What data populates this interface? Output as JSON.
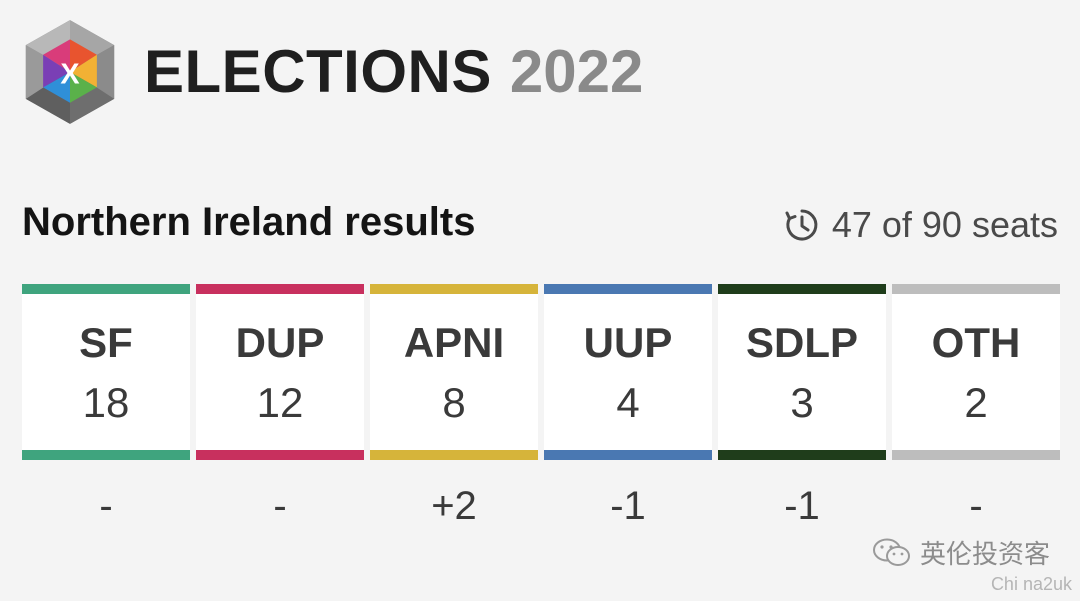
{
  "header": {
    "title": "ELECTIONS",
    "year": "2022",
    "logo_letter": "X"
  },
  "results": {
    "title": "Northern Ireland results",
    "seats_text": "47 of 90 seats",
    "clock_icon": "clock-icon"
  },
  "parties": [
    {
      "abbr": "SF",
      "seats": "18",
      "change": "-",
      "color": "#3fa47e"
    },
    {
      "abbr": "DUP",
      "seats": "12",
      "change": "-",
      "color": "#c8305e"
    },
    {
      "abbr": "APNI",
      "seats": "8",
      "change": "+2",
      "color": "#d6b43a"
    },
    {
      "abbr": "UUP",
      "seats": "4",
      "change": "-1",
      "color": "#4a78b2"
    },
    {
      "abbr": "SDLP",
      "seats": "3",
      "change": "-1",
      "color": "#1f3d1b"
    },
    {
      "abbr": "OTH",
      "seats": "2",
      "change": "-",
      "color": "#bdbdbd"
    }
  ],
  "watermark": {
    "line1": "英伦投资客",
    "line2": "Chi na2uk",
    "icon": "wechat-icon"
  }
}
